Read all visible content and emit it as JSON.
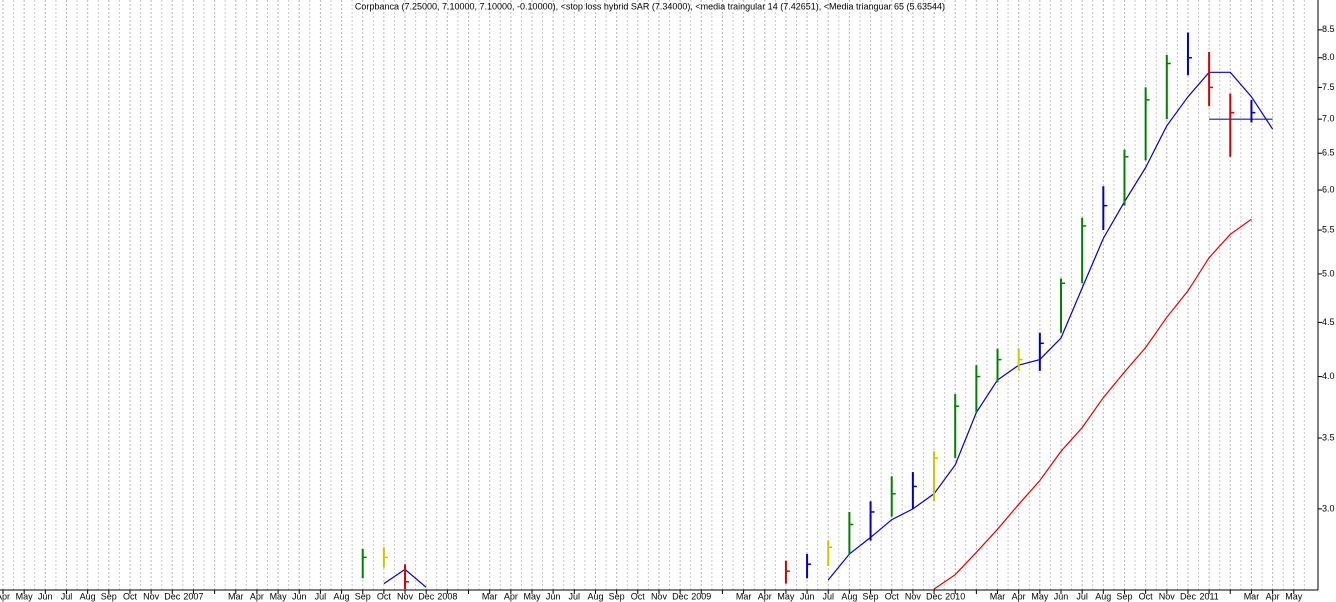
{
  "chart_data": {
    "type": "ohlc",
    "title": "Corpbanca (7.25000, 7.10000, 7.10000, -0.10000), <stop loss hybrid SAR (7.34000), <media traingular 14 (7.42651), <Media trianguar 65 (5.63544)",
    "categories": [
      "Apr",
      "May",
      "Jun",
      "Jul",
      "Aug",
      "Sep",
      "Oct",
      "Nov",
      "Dec",
      "2007",
      null,
      "Mar",
      "Apr",
      "May",
      "Jun",
      "Jul",
      "Aug",
      "Sep",
      "Oct",
      "Nov",
      "Dec",
      "2008",
      null,
      "Mar",
      "Apr",
      "May",
      "Jun",
      "Jul",
      "Aug",
      "Sep",
      "Oct",
      "Nov",
      "Dec",
      "2009",
      null,
      "Mar",
      "Apr",
      "May",
      "Jun",
      "Jul",
      "Aug",
      "Sep",
      "Oct",
      "Nov",
      "Dec",
      "2010",
      null,
      "Mar",
      "Apr",
      "May",
      "Jun",
      "Jul",
      "Aug",
      "Sep",
      "Oct",
      "Nov",
      "Dec",
      "2011",
      null,
      "Mar",
      "Apr",
      "May"
    ],
    "high": [
      null,
      null,
      null,
      null,
      null,
      null,
      null,
      null,
      null,
      null,
      null,
      null,
      null,
      null,
      null,
      null,
      null,
      2.75,
      2.76,
      2.66,
      null,
      null,
      null,
      null,
      null,
      null,
      null,
      null,
      null,
      null,
      null,
      null,
      null,
      null,
      null,
      null,
      null,
      2.68,
      2.72,
      2.8,
      2.98,
      3.05,
      3.22,
      3.25,
      3.4,
      3.85,
      4.1,
      4.25,
      4.25,
      4.4,
      4.95,
      5.65,
      6.05,
      6.55,
      7.5,
      8.05,
      8.45,
      8.1,
      7.4,
      7.3,
      null,
      null
    ],
    "low": [
      null,
      null,
      null,
      null,
      null,
      null,
      null,
      null,
      null,
      null,
      null,
      null,
      null,
      null,
      null,
      null,
      null,
      2.58,
      2.64,
      2.52,
      null,
      null,
      null,
      null,
      null,
      null,
      null,
      null,
      null,
      null,
      null,
      null,
      null,
      null,
      null,
      null,
      null,
      2.55,
      2.58,
      2.65,
      2.72,
      2.8,
      2.95,
      3.0,
      3.05,
      3.35,
      3.7,
      3.95,
      4.05,
      4.05,
      4.4,
      4.9,
      5.5,
      5.8,
      6.4,
      7.0,
      7.7,
      7.2,
      6.45,
      6.95,
      null,
      null
    ],
    "close": [
      null,
      null,
      null,
      null,
      null,
      null,
      null,
      null,
      null,
      null,
      null,
      null,
      null,
      null,
      null,
      null,
      null,
      2.7,
      2.7,
      2.56,
      null,
      null,
      null,
      null,
      null,
      null,
      null,
      null,
      null,
      null,
      null,
      null,
      null,
      null,
      null,
      null,
      null,
      2.62,
      2.66,
      2.76,
      2.9,
      2.98,
      3.1,
      3.15,
      3.35,
      3.75,
      4.0,
      4.15,
      4.15,
      4.3,
      4.9,
      5.55,
      5.8,
      6.45,
      7.3,
      7.9,
      8.0,
      7.5,
      7.1,
      7.1,
      null,
      null
    ],
    "bar_colors": [
      null,
      null,
      null,
      null,
      null,
      null,
      null,
      null,
      null,
      null,
      null,
      null,
      null,
      null,
      null,
      null,
      null,
      "#008000",
      "#c8c800",
      "#d00000",
      null,
      null,
      null,
      null,
      null,
      null,
      null,
      null,
      null,
      null,
      null,
      null,
      null,
      null,
      null,
      null,
      null,
      "#d00000",
      "#0000c0",
      "#c8c800",
      "#008000",
      "#0000c0",
      "#008000",
      "#0000c0",
      "#c8c800",
      "#008000",
      "#008000",
      "#008000",
      "#c8c800",
      "#0000c0",
      "#008000",
      "#008000",
      "#0000c0",
      "#008000",
      "#008000",
      "#008000",
      "#0000c0",
      "#d00000",
      "#d00000",
      "#0000c0",
      null,
      null
    ],
    "lines": [
      {
        "color": "#0000c8",
        "values": [
          null,
          null,
          null,
          null,
          null,
          null,
          null,
          null,
          null,
          null,
          null,
          null,
          null,
          null,
          null,
          null,
          null,
          null,
          2.55,
          2.63,
          2.53,
          null,
          null,
          null,
          null,
          null,
          null,
          null,
          null,
          null,
          null,
          null,
          null,
          null,
          null,
          null,
          null,
          null,
          null,
          2.57,
          2.72,
          2.82,
          2.93,
          3.0,
          3.1,
          3.3,
          3.7,
          3.97,
          4.1,
          4.15,
          4.35,
          4.85,
          5.4,
          5.85,
          6.3,
          6.9,
          7.35,
          7.75,
          7.75,
          7.35,
          6.85,
          null
        ]
      },
      {
        "color": "#e00000",
        "values": [
          null,
          null,
          null,
          null,
          null,
          null,
          null,
          null,
          null,
          null,
          null,
          null,
          null,
          null,
          null,
          null,
          null,
          null,
          null,
          null,
          null,
          null,
          null,
          null,
          null,
          null,
          null,
          null,
          null,
          null,
          null,
          null,
          null,
          null,
          null,
          null,
          null,
          null,
          null,
          null,
          null,
          null,
          null,
          null,
          2.52,
          2.6,
          2.73,
          2.87,
          3.03,
          3.19,
          3.4,
          3.58,
          3.82,
          4.04,
          4.26,
          4.55,
          4.82,
          5.18,
          5.45,
          5.63,
          null,
          null
        ]
      },
      {
        "color": "#1a1aa8",
        "values": [
          null,
          null,
          null,
          null,
          null,
          null,
          null,
          null,
          null,
          null,
          null,
          null,
          null,
          null,
          null,
          null,
          null,
          null,
          null,
          null,
          null,
          null,
          null,
          null,
          null,
          null,
          null,
          null,
          null,
          null,
          null,
          null,
          null,
          null,
          null,
          null,
          null,
          null,
          null,
          null,
          null,
          null,
          null,
          null,
          null,
          null,
          null,
          null,
          null,
          null,
          null,
          null,
          null,
          null,
          null,
          null,
          null,
          7.0,
          7.0,
          7.0,
          7.0,
          null
        ]
      }
    ],
    "log_scale": true,
    "grid": true,
    "ylim": [
      2.515,
      9.07
    ],
    "yticks": [
      {
        "value": 3,
        "label": "3.0"
      },
      3.5,
      {
        "value": 4,
        "label": "4.0"
      },
      4.5,
      {
        "value": 5,
        "label": "5.0"
      },
      5.5,
      {
        "value": 6,
        "label": "6.0"
      },
      6.5,
      {
        "value": 7,
        "label": "7.0"
      },
      7.5,
      {
        "value": 8,
        "label": "8.0"
      },
      8.5
    ]
  }
}
